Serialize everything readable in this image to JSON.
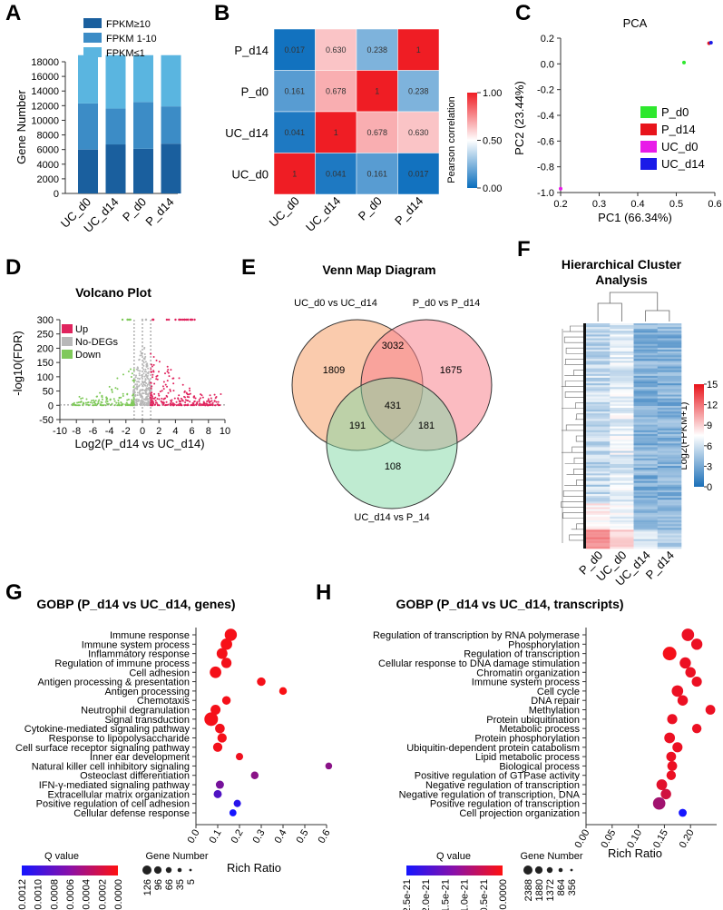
{
  "panels": {
    "A": "A",
    "B": "B",
    "C": "C",
    "D": "D",
    "E": "E",
    "F": "F",
    "G": "G",
    "H": "H"
  },
  "colors": {
    "fpkm_hi": "#1a5f9e",
    "fpkm_mid": "#3c8cc6",
    "fpkm_lo": "#5ab5e0",
    "up": "#e0245e",
    "nodeg": "#b8b8b8",
    "down": "#7fc95a",
    "red": "#e8141b"
  },
  "chart_data": [
    {
      "id": "A",
      "type": "bar",
      "stacked": true,
      "categories": [
        "UC_d0",
        "UC_d14",
        "P_d0",
        "P_d14"
      ],
      "series": [
        {
          "name": "FPKM≥10",
          "values": [
            6000,
            6700,
            6100,
            6800
          ]
        },
        {
          "name": "FPKM 1-10",
          "values": [
            6300,
            4900,
            6400,
            5100
          ]
        },
        {
          "name": "FPKM≤1",
          "values": [
            6600,
            7300,
            6400,
            7000
          ]
        }
      ],
      "ylabel": "Gene Number",
      "ylim": [
        0,
        18000
      ],
      "yticks": [
        "0",
        "2000",
        "4000",
        "6000",
        "8000",
        "10000",
        "12000",
        "14000",
        "16000",
        "18000"
      ]
    },
    {
      "id": "B",
      "type": "heatmap",
      "rows": [
        "P_d14",
        "P_d0",
        "UC_d14",
        "UC_d0"
      ],
      "cols": [
        "UC_d0",
        "UC_d14",
        "P_d0",
        "P_d14"
      ],
      "values": [
        [
          0.017,
          0.63,
          0.238,
          1
        ],
        [
          0.161,
          0.678,
          1,
          0.238
        ],
        [
          0.041,
          1,
          0.678,
          0.63
        ],
        [
          1,
          0.041,
          0.161,
          0.017
        ]
      ],
      "cell_labels": [
        [
          "0.017",
          "0.630",
          "0.238",
          "1"
        ],
        [
          "0.161",
          "0.678",
          "1",
          "0.238"
        ],
        [
          "0.041",
          "1",
          "0.678",
          "0.630"
        ],
        [
          "1",
          "0.041",
          "0.161",
          "0.017"
        ]
      ],
      "colorbar_label": "Pearson correlation",
      "colorbar_ticks": [
        "0.00",
        "0.50",
        "1.00"
      ]
    },
    {
      "id": "C",
      "type": "scatter",
      "title": "PCA",
      "xlabel": "PC1 (66.34%)",
      "ylabel": "PC2 (23.44%)",
      "xlim": [
        0.2,
        0.6
      ],
      "ylim": [
        -1.0,
        0.2
      ],
      "xticks": [
        "0.2",
        "0.3",
        "0.4",
        "0.5",
        "0.6"
      ],
      "yticks": [
        "0.2",
        "0.0",
        "-0.2",
        "-0.4",
        "-0.6",
        "-0.8",
        "-1.0"
      ],
      "points": [
        {
          "name": "P_d0",
          "x": 0.52,
          "y": 0.01,
          "color": "#2ee82e"
        },
        {
          "name": "P_d14",
          "x": 0.585,
          "y": 0.16,
          "color": "#e8141b"
        },
        {
          "name": "UC_d0",
          "x": 0.2,
          "y": -0.97,
          "color": "#e81ce8"
        },
        {
          "name": "UC_d14",
          "x": 0.59,
          "y": 0.165,
          "color": "#1a1ae8"
        }
      ]
    },
    {
      "id": "D",
      "type": "scatter",
      "title": "Volcano Plot",
      "xlabel": "Log2(P_d14 vs UC_d14)",
      "ylabel": "-log10(FDR)",
      "xlim": [
        -10,
        10
      ],
      "ylim": [
        -50,
        300
      ],
      "xticks": [
        "-10",
        "-8",
        "-6",
        "-4",
        "-2",
        "0",
        "2",
        "4",
        "6",
        "8",
        "10"
      ],
      "yticks": [
        "300",
        "250",
        "200",
        "150",
        "100",
        "50",
        "0",
        "-50"
      ],
      "legend": [
        "Up",
        "No-DEGs",
        "Down"
      ]
    },
    {
      "id": "E",
      "type": "venn",
      "title": "Venn Map Diagram",
      "sets": [
        "UC_d0 vs UC_d14",
        "P_d0 vs P_d14",
        "UC_d14 vs P_14"
      ],
      "regions": {
        "only_A": "1809",
        "A_B": "3032",
        "only_B": "1675",
        "all": "431",
        "A_C": "191",
        "B_C": "181",
        "only_C": "108"
      }
    },
    {
      "id": "F",
      "type": "heatmap",
      "title_line1": "Hierarchical Cluster",
      "title_line2": "Analysis",
      "cols": [
        "P_d0",
        "UC_d0",
        "UC_d14",
        "P_d14"
      ],
      "colorbar_label": "Log2(FPKM+1)",
      "colorbar_ticks": [
        "15",
        "12",
        "9",
        "6",
        "3",
        "0"
      ]
    },
    {
      "id": "G",
      "type": "scatter",
      "title": "GOBP (P_d14 vs UC_d14, genes)",
      "xlabel": "Rich Ratio",
      "xlim": [
        0,
        0.6
      ],
      "xticks": [
        "0.0",
        "0.1",
        "0.2",
        "0.3",
        "0.4",
        "0.5",
        "0.6"
      ],
      "terms": [
        "Immune response",
        "Immune system process",
        "Inflammatory response",
        "Regulation of immune process",
        "Cell adhesion",
        "Antigen processing & presentation",
        "Antigen processing",
        "Chemotaxis",
        "Neutrophil degranulation",
        "Signal transduction",
        "Cytokine-mediated signaling pathway",
        "Response to lipopolysaccharide",
        "Cell surface receptor signaling pathway",
        "Inner ear development",
        "Natural killer cell inhibitory signaling",
        "Osteoclast differentiation",
        "IFN-γ-mediated signaling pathway",
        "Extracellular matrix organization",
        "Positive regulation of cell adhesion",
        "Cellular defense response"
      ],
      "rich_ratio": [
        0.16,
        0.14,
        0.12,
        0.14,
        0.09,
        0.3,
        0.4,
        0.14,
        0.09,
        0.07,
        0.11,
        0.12,
        0.1,
        0.2,
        0.61,
        0.27,
        0.11,
        0.1,
        0.19,
        0.17
      ],
      "gene_number": [
        90,
        75,
        60,
        50,
        75,
        25,
        15,
        25,
        45,
        126,
        40,
        35,
        35,
        12,
        8,
        15,
        20,
        20,
        12,
        10
      ],
      "q_value": [
        5e-05,
        4e-05,
        5e-05,
        6e-05,
        5e-05,
        5e-05,
        3e-05,
        5e-05,
        5e-05,
        5e-05,
        6e-05,
        5e-05,
        6e-05,
        8e-05,
        0.0006,
        0.0006,
        0.0007,
        0.0009,
        0.0011,
        0.0012
      ],
      "q_legend_title": "Q value",
      "q_ticks": [
        "0.0012",
        "0.0010",
        "0.0008",
        "0.0006",
        "0.0004",
        "0.0002",
        "0.0000"
      ],
      "size_legend_title": "Gene Number",
      "size_ticks": [
        "126",
        "96",
        "66",
        "35",
        "5"
      ]
    },
    {
      "id": "H",
      "type": "scatter",
      "title": "GOBP (P_d14 vs UC_d14, transcripts)",
      "xlabel": "Rich Ratio",
      "xlim": [
        0,
        0.25
      ],
      "xticks": [
        "0.00",
        "0.05",
        "0.10",
        "0.15",
        "0.20"
      ],
      "terms": [
        "Regulation of transcription by RNA polymerase",
        "Phosphorylation",
        "Regulation of transcription",
        "Cellular response to DNA damage stimulation",
        "Chromatin organization",
        "Immune system process",
        "Cell cycle",
        "DNA repair",
        "Methylation",
        "Protein ubiquitination",
        "Metabolic process",
        "Protein phosphorylation",
        "Ubiquitin-dependent protein catabolism",
        "Lipid metabolic process",
        "Biological process",
        "Positive regulation of GTPase activity",
        "Negative regulation of transcription",
        "Negative regulation of transcription, DNA",
        "Positive regulation of transcription",
        "Cell projection organization"
      ],
      "rich_ratio": [
        0.195,
        0.212,
        0.16,
        0.19,
        0.2,
        0.212,
        0.175,
        0.185,
        0.238,
        0.165,
        0.212,
        0.16,
        0.175,
        0.163,
        0.165,
        0.163,
        0.145,
        0.153,
        0.14,
        0.185
      ],
      "gene_number": [
        1800,
        1300,
        2388,
        1300,
        1000,
        900,
        1400,
        1000,
        800,
        900,
        700,
        1100,
        900,
        800,
        800,
        700,
        1100,
        1000,
        1800,
        356
      ],
      "q_value": [
        2e-22,
        2e-22,
        1e-22,
        2e-22,
        2e-22,
        2e-22,
        2e-22,
        2e-22,
        2e-22,
        2e-22,
        2e-22,
        2e-22,
        2e-22,
        2e-22,
        2e-22,
        2e-22,
        3e-22,
        5e-22,
        1e-21,
        2.5e-21
      ],
      "q_legend_title": "Q value",
      "q_ticks": [
        "2.5e-21",
        "2.0e-21",
        "1.5e-21",
        "1.0e-21",
        "0.5e-21",
        "0.0000"
      ],
      "size_legend_title": "Gene Number",
      "size_ticks": [
        "2388",
        "1880",
        "1372",
        "864",
        "356"
      ]
    }
  ]
}
